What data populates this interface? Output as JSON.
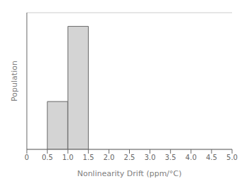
{
  "chart_data": {
    "type": "histogram",
    "xlabel": "Nonlinearity Drift (ppm/°C)",
    "ylabel": "Population",
    "bins": [
      0.5,
      1.0,
      1.5
    ],
    "values": [
      3.5,
      9.0
    ],
    "color": "#d4d4d4",
    "xlim": [
      0,
      5.0
    ],
    "ylim": [
      0,
      10.0
    ],
    "xticks": [
      0,
      0.5,
      {
        "value": 1.0,
        "label": "1.0"
      },
      1.5,
      {
        "value": 2.0,
        "label": "2.0"
      },
      2.5,
      {
        "value": 3.0,
        "label": "3.0"
      },
      3.5,
      {
        "value": 4.0,
        "label": "4.0"
      },
      4.5,
      {
        "value": 5.0,
        "label": "5.0"
      }
    ],
    "yticks": [
      0,
      1,
      2,
      3,
      4,
      5,
      6,
      7,
      8,
      9,
      10
    ],
    "grid": true,
    "tick_labels": "x"
  }
}
